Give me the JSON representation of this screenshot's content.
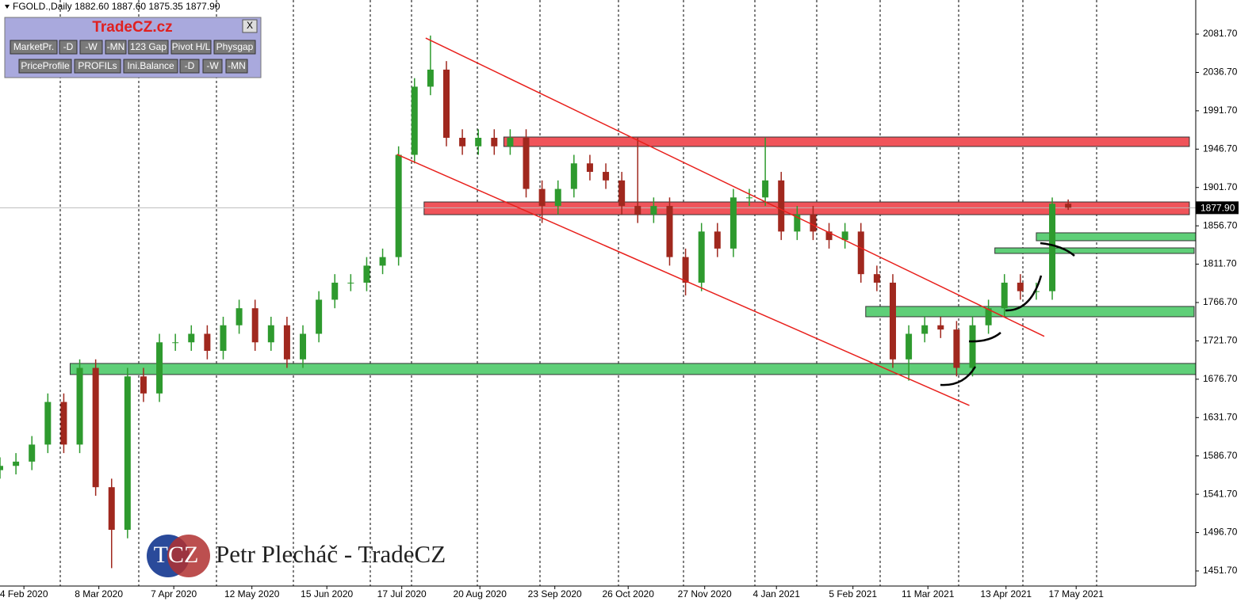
{
  "header": "FGOLD.,Daily  1882.60 1887.60 1875.35 1877.90",
  "panel": {
    "title": "TradeCZ.cz",
    "close": "X",
    "row1": [
      "MarketPr.",
      "-D",
      "-W",
      "-MN",
      "123 Gap",
      "Pivot H/L",
      "Physgap"
    ],
    "row2": [
      "PriceProfile",
      "PROFILs",
      "Ini.Balance",
      "-D",
      "-W",
      "-MN"
    ]
  },
  "watermark": {
    "logo": "TCZ",
    "text": "Petr Plecháč - TradeCZ"
  },
  "chart_data": {
    "type": "candlestick",
    "x": [
      0,
      1,
      2,
      3,
      4,
      5,
      6,
      7,
      8,
      9,
      10,
      11,
      12,
      13,
      14,
      15,
      16,
      17,
      18,
      19,
      20,
      21,
      22,
      23,
      24,
      25,
      26,
      27,
      28,
      29,
      30,
      31,
      32,
      33,
      34,
      35,
      36,
      37,
      38,
      39,
      40,
      41,
      42,
      43,
      44,
      45,
      46,
      47,
      48,
      49,
      50,
      51,
      52,
      53,
      54,
      55,
      56,
      57,
      58,
      59,
      60,
      61,
      62,
      63,
      64,
      65,
      66,
      67
    ],
    "open": [
      1570,
      1575,
      1580,
      1600,
      1650,
      1600,
      1690,
      1550,
      1500,
      1680,
      1660,
      1720,
      1720,
      1730,
      1710,
      1740,
      1760,
      1720,
      1740,
      1700,
      1730,
      1770,
      1790,
      1790,
      1810,
      1820,
      1940,
      2020,
      2040,
      1960,
      1950,
      1960,
      1950,
      1960,
      1900,
      1880,
      1900,
      1930,
      1920,
      1910,
      1880,
      1870,
      1880,
      1820,
      1790,
      1850,
      1830,
      1890,
      1890,
      1910,
      1850,
      1870,
      1850,
      1840,
      1850,
      1800,
      1790,
      1700,
      1730,
      1740,
      1735,
      1690,
      1740,
      1760,
      1790,
      1780,
      1780,
      1882.6
    ],
    "high": [
      1585,
      1590,
      1610,
      1660,
      1660,
      1700,
      1700,
      1560,
      1690,
      1690,
      1730,
      1730,
      1740,
      1740,
      1750,
      1770,
      1770,
      1750,
      1750,
      1740,
      1780,
      1800,
      1800,
      1820,
      1830,
      1950,
      2030,
      2080,
      2050,
      1970,
      1970,
      1970,
      1970,
      1970,
      1910,
      1910,
      1940,
      1940,
      1930,
      1920,
      1960,
      1890,
      1890,
      1830,
      1860,
      1860,
      1900,
      1900,
      1960,
      1920,
      1880,
      1880,
      1860,
      1860,
      1860,
      1810,
      1800,
      1740,
      1750,
      1750,
      1745,
      1750,
      1770,
      1800,
      1800,
      1790,
      1890,
      1887.6
    ],
    "low": [
      1560,
      1565,
      1570,
      1590,
      1590,
      1590,
      1540,
      1455,
      1490,
      1650,
      1650,
      1710,
      1710,
      1700,
      1700,
      1730,
      1710,
      1710,
      1690,
      1690,
      1720,
      1760,
      1780,
      1780,
      1800,
      1810,
      1930,
      2010,
      1950,
      1940,
      1940,
      1940,
      1940,
      1890,
      1860,
      1870,
      1890,
      1910,
      1900,
      1870,
      1860,
      1860,
      1810,
      1775,
      1780,
      1820,
      1820,
      1880,
      1880,
      1840,
      1840,
      1840,
      1830,
      1830,
      1790,
      1780,
      1690,
      1675,
      1720,
      1725,
      1680,
      1680,
      1730,
      1750,
      1770,
      1770,
      1770,
      1875.35
    ],
    "close": [
      1575,
      1580,
      1600,
      1650,
      1600,
      1690,
      1550,
      1500,
      1680,
      1660,
      1720,
      1720,
      1730,
      1710,
      1740,
      1760,
      1720,
      1740,
      1700,
      1730,
      1770,
      1790,
      1790,
      1810,
      1820,
      1940,
      2020,
      2040,
      1960,
      1950,
      1960,
      1950,
      1960,
      1900,
      1880,
      1900,
      1930,
      1920,
      1910,
      1880,
      1870,
      1880,
      1820,
      1790,
      1850,
      1830,
      1890,
      1890,
      1910,
      1850,
      1870,
      1850,
      1840,
      1850,
      1800,
      1790,
      1700,
      1730,
      1740,
      1735,
      1690,
      1740,
      1760,
      1790,
      1780,
      1780,
      1882.6,
      1877.9
    ],
    "up_color": "#2e9a2e",
    "down_color": "#a0281e",
    "xlim": [
      0,
      75
    ],
    "ylim": [
      1434.0,
      2121.7
    ],
    "xticks": [
      {
        "value": 1.5,
        "label": "4 Feb 2020"
      },
      {
        "value": 6.2,
        "label": "8 Mar 2020"
      },
      {
        "value": 10.9,
        "label": "7 Apr 2020"
      },
      {
        "value": 15.8,
        "label": "12 May 2020"
      },
      {
        "value": 20.5,
        "label": "15 Jun 2020"
      },
      {
        "value": 25.2,
        "label": "17 Jul 2020"
      },
      {
        "value": 30.1,
        "label": "20 Aug 2020"
      },
      {
        "value": 34.8,
        "label": "23 Sep 2020"
      },
      {
        "value": 39.4,
        "label": "26 Oct 2020"
      },
      {
        "value": 44.2,
        "label": "27 Nov 2020"
      },
      {
        "value": 48.7,
        "label": "4 Jan 2021"
      },
      {
        "value": 53.5,
        "label": "5 Feb 2021"
      },
      {
        "value": 58.2,
        "label": "11 Mar 2021"
      },
      {
        "value": 63.1,
        "label": "13 Apr 2021"
      },
      {
        "value": 67.5,
        "label": "17 May 2021"
      }
    ],
    "yticks": [
      {
        "value": 2081.7,
        "label": "2081.70"
      },
      {
        "value": 2036.7,
        "label": "2036.70"
      },
      {
        "value": 1991.7,
        "label": "1991.70"
      },
      {
        "value": 1946.7,
        "label": "1946.70"
      },
      {
        "value": 1901.7,
        "label": "1901.70"
      },
      {
        "value": 1856.7,
        "label": "1856.70"
      },
      {
        "value": 1811.7,
        "label": "1811.70"
      },
      {
        "value": 1766.7,
        "label": "1766.70"
      },
      {
        "value": 1721.7,
        "label": "1721.70"
      },
      {
        "value": 1676.7,
        "label": "1676.70"
      },
      {
        "value": 1631.7,
        "label": "1631.70"
      },
      {
        "value": 1586.7,
        "label": "1586.70"
      },
      {
        "value": 1541.7,
        "label": "1541.70"
      },
      {
        "value": 1496.7,
        "label": "1496.70"
      },
      {
        "value": 1451.7,
        "label": "1451.70"
      }
    ],
    "last_price": {
      "value": 1877.9,
      "label": "1877.90"
    },
    "zones": [
      {
        "x": [
          31.6,
          74.6
        ],
        "y": [
          1949.8,
          1960.9
        ],
        "color": "#f0545a"
      },
      {
        "x": [
          26.6,
          74.6
        ],
        "y": [
          1869.8,
          1884.7
        ],
        "color": "#f0545a"
      },
      {
        "x": [
          65,
          75
        ],
        "y": [
          1839.2,
          1848.5
        ],
        "color": "#5fcf78"
      },
      {
        "x": [
          62.4,
          74.9
        ],
        "y": [
          1824.3,
          1830.8
        ],
        "color": "#5fcf78"
      },
      {
        "x": [
          54.3,
          74.9
        ],
        "y": [
          1750.0,
          1762.1
        ],
        "color": "#5fcf78"
      },
      {
        "x": [
          4.4,
          75
        ],
        "y": [
          1682.2,
          1695.2
        ],
        "color": "#5fcf78"
      }
    ],
    "trendlines": [
      {
        "x": [
          26.7,
          65.5
        ],
        "y": [
          2077,
          1727
        ],
        "color": "#e8201c"
      },
      {
        "x": [
          24.9,
          60.8
        ],
        "y": [
          1940.5,
          1645.9
        ],
        "color": "#e8201c"
      }
    ]
  }
}
